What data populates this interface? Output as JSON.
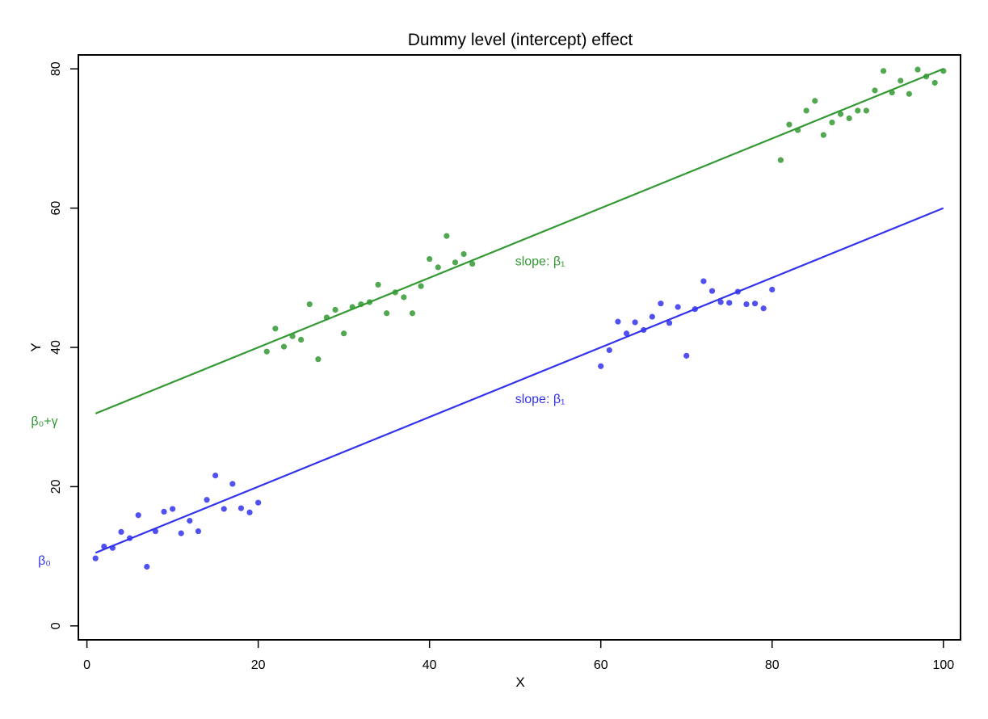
{
  "chart_data": {
    "type": "scatter",
    "title": "Dummy level (intercept) effect",
    "xlabel": "X",
    "ylabel": "Y",
    "xlim": [
      -1,
      102
    ],
    "ylim": [
      -2,
      82
    ],
    "xticks": [
      0,
      20,
      40,
      60,
      80,
      100
    ],
    "yticks": [
      0,
      20,
      40,
      60,
      80
    ],
    "grid": false,
    "colors": {
      "group0": "#3333ee",
      "group1": "#339933"
    },
    "series": [
      {
        "color": "#3333ee",
        "points": [
          [
            1,
            9.7
          ],
          [
            2,
            11.4
          ],
          [
            3,
            11.2
          ],
          [
            4,
            13.5
          ],
          [
            5,
            12.6
          ],
          [
            6,
            15.9
          ],
          [
            7,
            8.5
          ],
          [
            8,
            13.6
          ],
          [
            9,
            16.4
          ],
          [
            10,
            16.8
          ],
          [
            11,
            13.3
          ],
          [
            12,
            15.1
          ],
          [
            13,
            13.6
          ],
          [
            14,
            18.1
          ],
          [
            15,
            21.6
          ],
          [
            16,
            16.8
          ],
          [
            17,
            20.4
          ],
          [
            18,
            16.9
          ],
          [
            19,
            16.3
          ],
          [
            20,
            17.7
          ],
          [
            60,
            37.3
          ],
          [
            61,
            39.6
          ],
          [
            62,
            43.7
          ],
          [
            63,
            42.0
          ],
          [
            64,
            43.6
          ],
          [
            65,
            42.5
          ],
          [
            66,
            44.4
          ],
          [
            67,
            46.3
          ],
          [
            68,
            43.5
          ],
          [
            69,
            45.8
          ],
          [
            70,
            38.8
          ],
          [
            71,
            45.5
          ],
          [
            72,
            49.5
          ],
          [
            73,
            48.1
          ],
          [
            74,
            46.5
          ],
          [
            75,
            46.4
          ],
          [
            76,
            48.0
          ],
          [
            77,
            46.2
          ],
          [
            78,
            46.3
          ],
          [
            79,
            45.6
          ],
          [
            80,
            48.3
          ]
        ],
        "fit": {
          "x": [
            1,
            100
          ],
          "y": [
            10.5,
            60.0
          ]
        }
      },
      {
        "color": "#339933",
        "points": [
          [
            21,
            39.4
          ],
          [
            22,
            42.7
          ],
          [
            23,
            40.1
          ],
          [
            24,
            41.6
          ],
          [
            25,
            41.1
          ],
          [
            26,
            46.2
          ],
          [
            27,
            38.3
          ],
          [
            28,
            44.3
          ],
          [
            29,
            45.4
          ],
          [
            30,
            42.0
          ],
          [
            31,
            45.8
          ],
          [
            32,
            46.2
          ],
          [
            33,
            46.5
          ],
          [
            34,
            49.0
          ],
          [
            35,
            44.9
          ],
          [
            36,
            47.9
          ],
          [
            37,
            47.2
          ],
          [
            38,
            44.9
          ],
          [
            39,
            48.8
          ],
          [
            40,
            52.7
          ],
          [
            41,
            51.5
          ],
          [
            42,
            56.0
          ],
          [
            43,
            52.2
          ],
          [
            44,
            53.4
          ],
          [
            45,
            52.0
          ],
          [
            81,
            66.9
          ],
          [
            82,
            72.0
          ],
          [
            83,
            71.2
          ],
          [
            84,
            74.0
          ],
          [
            85,
            75.4
          ],
          [
            86,
            70.5
          ],
          [
            87,
            72.3
          ],
          [
            88,
            73.5
          ],
          [
            89,
            72.9
          ],
          [
            90,
            74.0
          ],
          [
            91,
            74.0
          ],
          [
            92,
            76.9
          ],
          [
            93,
            79.7
          ],
          [
            94,
            76.6
          ],
          [
            95,
            78.3
          ],
          [
            96,
            76.4
          ],
          [
            97,
            79.9
          ],
          [
            98,
            78.9
          ],
          [
            99,
            78.0
          ],
          [
            100,
            79.7
          ]
        ],
        "fit": {
          "x": [
            1,
            100
          ],
          "y": [
            30.5,
            80.0
          ]
        }
      }
    ],
    "annotations": [
      {
        "text": "slope: β₁",
        "x": 50,
        "y": 52.5,
        "color": "#339933",
        "align": "start"
      },
      {
        "text": "slope: β₁",
        "x": 50,
        "y": 32.7,
        "color": "#3333ee",
        "align": "start"
      },
      {
        "text": "β₀+γ",
        "y": 29.5,
        "color": "#339933",
        "side": "left-margin"
      },
      {
        "text": "β₀",
        "y": 9.5,
        "color": "#3333ee",
        "side": "left-margin"
      }
    ]
  }
}
